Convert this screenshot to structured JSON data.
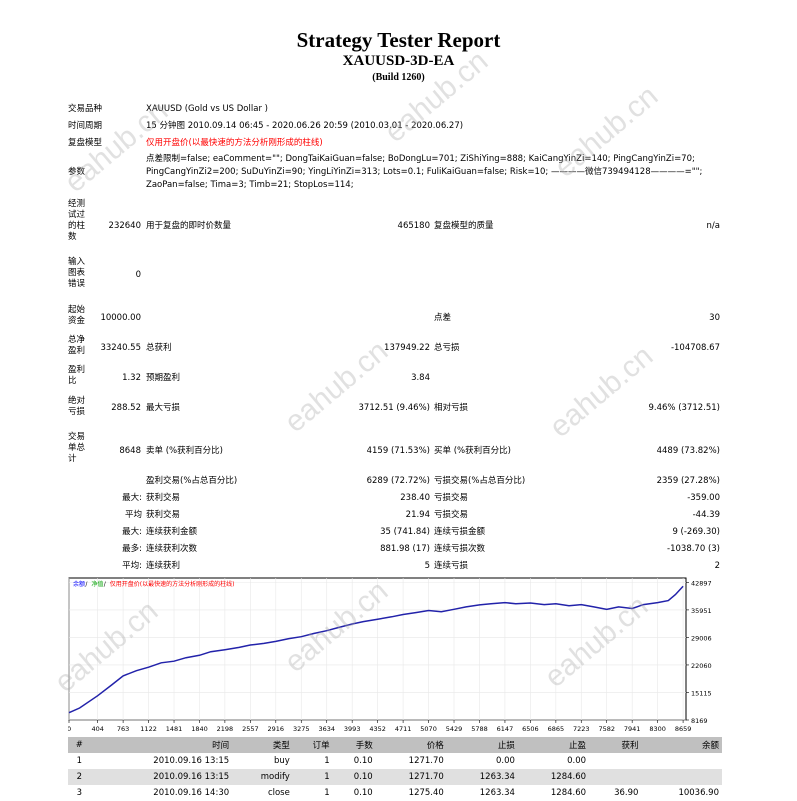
{
  "header": {
    "title": "Strategy Tester Report",
    "subtitle": "XAUUSD-3D-EA",
    "build": "(Build 1260)"
  },
  "settings": {
    "symbol_label": "交易品种",
    "symbol_value": "XAUUSD (Gold vs US Dollar )",
    "period_label": "时间周期",
    "period_value": "15 分钟图 2010.09.14 06:45 - 2020.06.26 20:59 (2010.03.01 - 2020.06.27)",
    "model_label": "复盘模型",
    "model_value": "仅用开盘价(以最快速的方法分析刚形成的柱线)",
    "params_label": "参数",
    "params_line1": "点差限制=false; eaComment=\"\"; DongTaiKaiGuan=false; BoDongLu=701; ZiShiYing=888; KaiCangYinZi=140; PingCangYinZi=70;",
    "params_line2": "PingCangYinZi2=200; SuDuYinZi=90; YingLiYinZi=313; Lots=0.1; FuliKaiGuan=false; Risk=10; ————微信739494128————=\"\";",
    "params_line3": "ZaoPan=false; Tima=3; Timb=21; StopLos=114;"
  },
  "summary": {
    "bars_label": "经测试过的柱数",
    "bars_value": "232640",
    "ticks_label": "用于复盘的即时价数量",
    "ticks_value": "465180",
    "quality_label": "复盘模型的质量",
    "quality_value": "n/a",
    "errors_label": "输入图表错误",
    "errors_value": "0",
    "deposit_label": "起始资金",
    "deposit_value": "10000.00",
    "spread_label": "点差",
    "spread_value": "30",
    "net_label": "总净盈利",
    "net_value": "33240.55",
    "gross_profit_label": "总获利",
    "gross_profit_value": "137949.22",
    "gross_loss_label": "总亏损",
    "gross_loss_value": "-104708.67",
    "pf_label": "盈利比",
    "pf_value": "1.32",
    "payoff_label": "预期盈利",
    "payoff_value": "3.84",
    "abs_dd_label": "绝对亏损",
    "abs_dd_value": "288.52",
    "max_dd_label": "最大亏损",
    "max_dd_value": "3712.51 (9.46%)",
    "rel_dd_label": "相对亏损",
    "rel_dd_value": "9.46% (3712.51)",
    "total_trades_label": "交易单总计",
    "total_trades_value": "8648",
    "short_label": "卖单 (%获利百分比)",
    "short_value": "4159 (71.53%)",
    "long_label": "买单 (%获利百分比)",
    "long_value": "4489 (73.82%)",
    "profit_trades_label": "盈利交易(%占总百分比)",
    "profit_trades_value": "6289 (72.72%)",
    "loss_trades_label": "亏损交易(%占总百分比)",
    "loss_trades_value": "2359 (27.28%)",
    "largest_prefix": "最大:",
    "largest_profit_label": "获利交易",
    "largest_profit_value": "238.40",
    "largest_loss_label": "亏损交易",
    "largest_loss_value": "-359.00",
    "average_prefix": "平均",
    "avg_profit_label": "获利交易",
    "avg_profit_value": "21.94",
    "avg_loss_label": "亏损交易",
    "avg_loss_value": "-44.39",
    "max_prefix": "最大:",
    "max_consec_wins_label": "连续获利金额",
    "max_consec_wins_value": "35 (741.84)",
    "max_consec_losses_label": "连续亏损金额",
    "max_consec_losses_value": "9 (-269.30)",
    "most_prefix": "最多:",
    "most_consec_profit_label": "连续获利次数",
    "most_consec_profit_value": "881.98 (17)",
    "most_consec_loss_label": "连续亏损次数",
    "most_consec_loss_value": "-1038.70 (3)",
    "avg2_prefix": "平均:",
    "avg_consec_wins_label": "连续获利",
    "avg_consec_wins_value": "5",
    "avg_consec_losses_label": "连续亏损",
    "avg_consec_losses_value": "2"
  },
  "chart_data": {
    "type": "line",
    "legend": [
      "余额",
      "净值",
      "仅用开盘价(以最快速的方法分析刚形成的柱线)"
    ],
    "legend_colors": [
      "#0000ff",
      "#00a000",
      "#ff0000"
    ],
    "series_color": "#2222aa",
    "x_ticks": [
      0,
      404,
      763,
      1122,
      1481,
      1840,
      2198,
      2557,
      2916,
      3275,
      3634,
      3993,
      4352,
      4711,
      5070,
      5429,
      5788,
      6147,
      6506,
      6865,
      7223,
      7582,
      7941,
      8300,
      8659
    ],
    "y_ticks": [
      8169,
      15115,
      22060,
      29006,
      35951,
      42897
    ],
    "ylim": [
      8169,
      44000
    ],
    "xlim": [
      0,
      8700
    ],
    "x": [
      0,
      150,
      404,
      600,
      763,
      950,
      1122,
      1300,
      1481,
      1650,
      1840,
      2000,
      2198,
      2400,
      2557,
      2750,
      2916,
      3100,
      3275,
      3450,
      3634,
      3800,
      3993,
      4150,
      4352,
      4550,
      4711,
      4900,
      5070,
      5250,
      5429,
      5600,
      5788,
      5950,
      6147,
      6300,
      6506,
      6700,
      6865,
      7050,
      7223,
      7400,
      7582,
      7750,
      7941,
      8100,
      8300,
      8450,
      8550,
      8659
    ],
    "y": [
      10000,
      11200,
      14300,
      17000,
      19300,
      20600,
      21500,
      22600,
      23000,
      23900,
      24500,
      25400,
      25900,
      26500,
      27100,
      27500,
      28000,
      28700,
      29200,
      30000,
      30700,
      31500,
      32400,
      33000,
      33600,
      34200,
      34800,
      35300,
      35800,
      35500,
      36100,
      36700,
      37200,
      37500,
      37800,
      37500,
      37700,
      37300,
      37500,
      37000,
      37300,
      36700,
      36100,
      36700,
      36300,
      37300,
      37800,
      38300,
      39800,
      41900
    ]
  },
  "trades": {
    "headers": [
      "#",
      "时间",
      "类型",
      "订单",
      "手数",
      "价格",
      "止损",
      "止盈",
      "获利",
      "余额"
    ],
    "rows": [
      [
        "1",
        "2010.09.16 13:15",
        "buy",
        "1",
        "0.10",
        "1271.70",
        "0.00",
        "0.00",
        "",
        ""
      ],
      [
        "2",
        "2010.09.16 13:15",
        "modify",
        "1",
        "0.10",
        "1271.70",
        "1263.34",
        "1284.60",
        "",
        ""
      ],
      [
        "3",
        "2010.09.16 14:30",
        "close",
        "1",
        "0.10",
        "1275.40",
        "1263.34",
        "1284.60",
        "36.90",
        "10036.90"
      ]
    ]
  },
  "watermark": "eahub.cn"
}
